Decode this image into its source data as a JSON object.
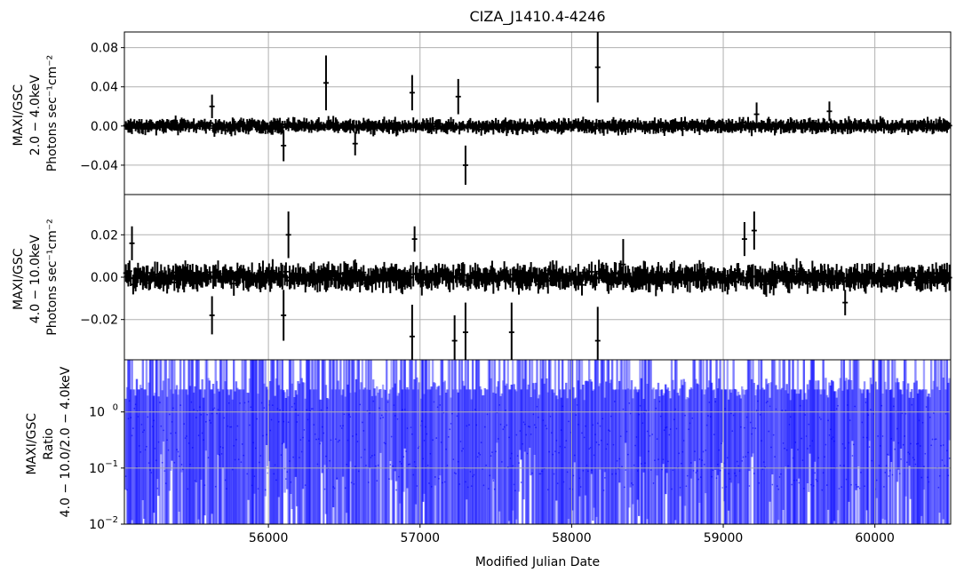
{
  "title": "CIZA_J1410.4-4246",
  "xlabel": "Modified Julian Date",
  "colors": {
    "lightcurve": "#000000",
    "ratio": "#0000ff",
    "grid": "#b0b0b0"
  },
  "chart_data": [
    {
      "type": "scatter",
      "panel": "top",
      "ylabel_lines": [
        "MAXI/GSC",
        "2.0 − 4.0keV",
        "Photons sec⁻¹cm⁻²"
      ],
      "xlim": [
        55050,
        60500
      ],
      "ylim": [
        -0.07,
        0.096
      ],
      "xticks": [
        56000,
        57000,
        58000,
        59000,
        60000
      ],
      "yticks": [
        -0.04,
        0.0,
        0.04,
        0.08
      ],
      "ytick_labels": [
        "−0.04",
        "0.00",
        "0.04",
        "0.08"
      ],
      "grid": true,
      "series": [
        {
          "color": "#000000",
          "step": 8,
          "x_start": 55060,
          "x_end": 60496,
          "y_typical": 0.0,
          "err_typical": 0.006,
          "notable_points": [
            {
              "x": 55630,
              "y": 0.02,
              "err": 0.012
            },
            {
              "x": 56100,
              "y": -0.02,
              "err": 0.016
            },
            {
              "x": 56380,
              "y": 0.044,
              "err": 0.028
            },
            {
              "x": 56570,
              "y": -0.018,
              "err": 0.012
            },
            {
              "x": 56950,
              "y": 0.034,
              "err": 0.018
            },
            {
              "x": 57250,
              "y": 0.03,
              "err": 0.018
            },
            {
              "x": 57300,
              "y": -0.04,
              "err": 0.02
            },
            {
              "x": 58170,
              "y": 0.06,
              "err": 0.036
            },
            {
              "x": 59220,
              "y": 0.012,
              "err": 0.012
            },
            {
              "x": 59700,
              "y": 0.015,
              "err": 0.01
            }
          ]
        }
      ]
    },
    {
      "type": "scatter",
      "panel": "middle",
      "ylabel_lines": [
        "MAXI/GSC",
        "4.0 − 10.0keV",
        "Photons sec⁻¹cm⁻²"
      ],
      "xlim": [
        55050,
        60500
      ],
      "ylim": [
        -0.039,
        0.039
      ],
      "xticks": [
        56000,
        57000,
        58000,
        59000,
        60000
      ],
      "yticks": [
        -0.02,
        0.0,
        0.02
      ],
      "ytick_labels": [
        "−0.02",
        "0.00",
        "0.02"
      ],
      "grid": true,
      "series": [
        {
          "color": "#000000",
          "step": 8,
          "x_start": 55060,
          "x_end": 60496,
          "y_typical": 0.0,
          "err_typical": 0.005,
          "notable_points": [
            {
              "x": 55100,
              "y": 0.016,
              "err": 0.008
            },
            {
              "x": 55630,
              "y": -0.018,
              "err": 0.009
            },
            {
              "x": 56100,
              "y": -0.018,
              "err": 0.012
            },
            {
              "x": 56130,
              "y": 0.02,
              "err": 0.011
            },
            {
              "x": 56950,
              "y": -0.028,
              "err": 0.015
            },
            {
              "x": 56960,
              "y": 0.018,
              "err": 0.006
            },
            {
              "x": 57230,
              "y": -0.03,
              "err": 0.012
            },
            {
              "x": 57300,
              "y": -0.026,
              "err": 0.014
            },
            {
              "x": 57600,
              "y": -0.026,
              "err": 0.014
            },
            {
              "x": 58170,
              "y": -0.03,
              "err": 0.016
            },
            {
              "x": 58340,
              "y": 0.006,
              "err": 0.012
            },
            {
              "x": 59140,
              "y": 0.018,
              "err": 0.008
            },
            {
              "x": 59200,
              "y": 0.022,
              "err": 0.009
            },
            {
              "x": 59800,
              "y": -0.012,
              "err": 0.006
            }
          ]
        }
      ]
    },
    {
      "type": "scatter",
      "panel": "bottom",
      "ylabel_lines": [
        "MAXI/GSC",
        "Ratio",
        "4.0 − 10.0/2.0 − 4.0keV"
      ],
      "yscale": "log",
      "xlim": [
        55050,
        60500
      ],
      "ylim": [
        0.01,
        8.5
      ],
      "xticks": [
        56000,
        57000,
        58000,
        59000,
        60000
      ],
      "xtick_labels": [
        "56000",
        "57000",
        "58000",
        "59000",
        "60000"
      ],
      "yticks": [
        0.01,
        0.1,
        1.0
      ],
      "ytick_labels": [
        "10",
        "10",
        "10"
      ],
      "ytick_exponents": [
        "−2",
        "−1",
        "0"
      ],
      "grid": true,
      "series": [
        {
          "color": "#0000ff",
          "step": 8,
          "x_start": 55060,
          "x_end": 60496,
          "y_typical": 0.25,
          "err_range": [
            0.01,
            8.5
          ]
        }
      ]
    }
  ]
}
